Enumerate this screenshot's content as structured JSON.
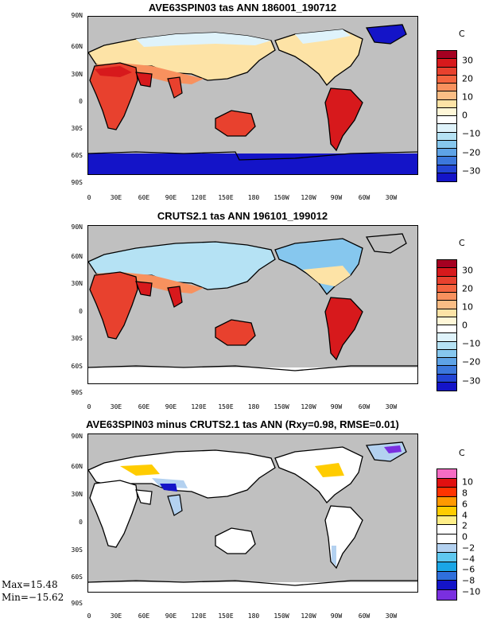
{
  "panels": [
    {
      "title": "AVE63SPIN03 tas ANN 186001_190712",
      "units": "C",
      "colorbar_labels": [
        "30",
        "20",
        "10",
        "0",
        "−10",
        "−20",
        "−30"
      ],
      "colors": [
        "#a50021",
        "#d7191c",
        "#e8412e",
        "#f4643f",
        "#f8915e",
        "#fbbd85",
        "#fde3a6",
        "#fff7d8",
        "#ffffff",
        "#dff3fb",
        "#b5e2f4",
        "#86c7ee",
        "#5ea3e6",
        "#3c78dc",
        "#2244d4",
        "#1414c8"
      ]
    },
    {
      "title": "CRUTS2.1 tas ANN 196101_199012",
      "units": "C",
      "colorbar_labels": [
        "30",
        "20",
        "10",
        "0",
        "−10",
        "−20",
        "−30"
      ],
      "colors": [
        "#a50021",
        "#d7191c",
        "#e8412e",
        "#f4643f",
        "#f8915e",
        "#fbbd85",
        "#fde3a6",
        "#fff7d8",
        "#ffffff",
        "#dff3fb",
        "#b5e2f4",
        "#86c7ee",
        "#5ea3e6",
        "#3c78dc",
        "#2244d4",
        "#1414c8"
      ]
    },
    {
      "title": "AVE63SPIN03 minus CRUTS2.1 tas ANN (Rxy=0.98, RMSE=0.01)",
      "units": "C",
      "colorbar_labels": [
        "10",
        "8",
        "6",
        "4",
        "2",
        "0",
        "−2",
        "−4",
        "−6",
        "−8",
        "−10"
      ],
      "colors": [
        "#f56cc4",
        "#e01010",
        "#ff3300",
        "#ff9900",
        "#ffcc00",
        "#ffee88",
        "#ffffff",
        "#ffffff",
        "#b3d1f0",
        "#5fc8f0",
        "#1aa6e6",
        "#2f6fdc",
        "#1414c8",
        "#7a2fe0"
      ]
    }
  ],
  "lat_labels": [
    "90N",
    "60N",
    "30N",
    "0",
    "30S",
    "60S",
    "90S"
  ],
  "lon_labels": [
    "0",
    "30E",
    "60E",
    "90E",
    "120E",
    "150E",
    "180",
    "150W",
    "120W",
    "90W",
    "60W",
    "30W"
  ],
  "stats": {
    "max": "Max=15.48",
    "min": "Min=−15.62"
  },
  "colors": {
    "ocean": "#c0c0c0",
    "coast": "#000000"
  }
}
